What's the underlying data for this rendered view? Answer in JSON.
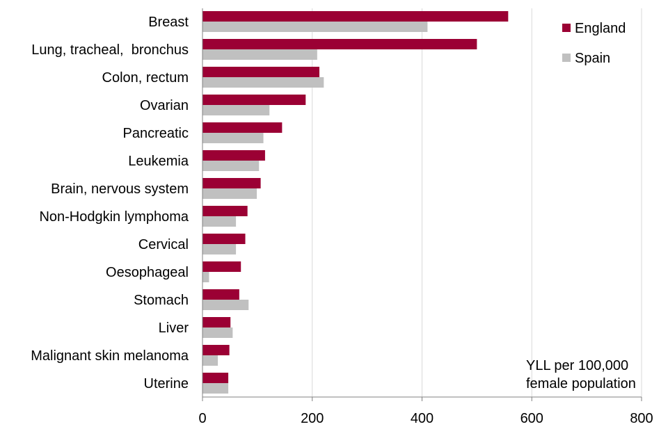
{
  "chart_data": {
    "type": "bar",
    "orientation": "horizontal",
    "categories": [
      "Breast",
      "Lung, tracheal,  bronchus",
      "Colon, rectum",
      "Ovarian",
      "Pancreatic",
      "Leukemia",
      "Brain, nervous system",
      "Non-Hodgkin lymphoma",
      "Cervical",
      "Oesophageal",
      "Stomach",
      "Liver",
      "Malignant skin melanoma",
      "Uterine"
    ],
    "series": [
      {
        "name": "England",
        "color": "#9b0034",
        "values": [
          557,
          500,
          213,
          188,
          145,
          114,
          106,
          82,
          78,
          70,
          67,
          51,
          49,
          47
        ]
      },
      {
        "name": "Spain",
        "color": "#c0c0c0",
        "values": [
          410,
          209,
          221,
          122,
          111,
          103,
          99,
          61,
          61,
          12,
          84,
          55,
          28,
          47
        ]
      }
    ],
    "xlim": [
      0,
      800
    ],
    "xticks": [
      0,
      200,
      400,
      600,
      800
    ],
    "grid": "vertical",
    "legend": "top-right",
    "annotation": [
      "YLL per 100,000",
      "female population"
    ]
  }
}
